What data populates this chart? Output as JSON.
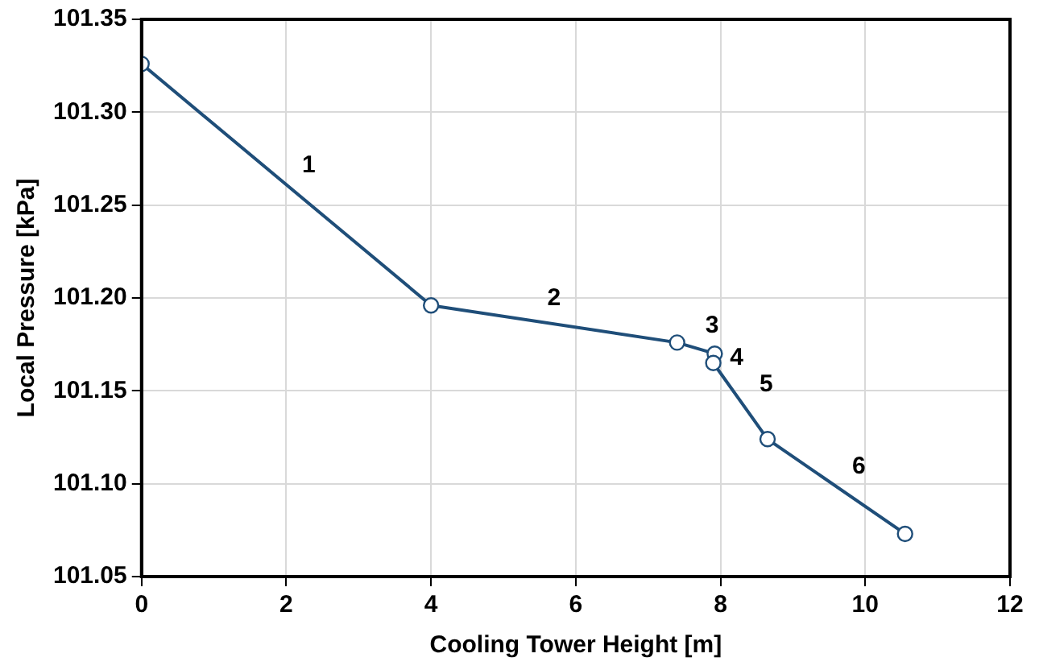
{
  "chart_data": {
    "type": "line",
    "xlabel": "Cooling Tower Height [m]",
    "ylabel": "Local Pressure [kPa]",
    "series": [
      {
        "color": "#1f4e79",
        "x": [
          0,
          4.0,
          7.4,
          7.92,
          7.9,
          8.65,
          10.55
        ],
        "values": [
          101.326,
          101.196,
          101.176,
          101.17,
          101.165,
          101.124,
          101.073
        ]
      }
    ],
    "xlim": [
      0,
      12
    ],
    "xticks": [
      0,
      2,
      4,
      6,
      8,
      10,
      12
    ],
    "ylim": [
      101.05,
      101.35
    ],
    "yticks": [
      {
        "value": 101.05,
        "label": "101.05"
      },
      {
        "value": 101.1,
        "label": "101.10"
      },
      {
        "value": 101.15,
        "label": "101.15"
      },
      {
        "value": 101.2,
        "label": "101.20"
      },
      {
        "value": 101.25,
        "label": "101.25"
      },
      {
        "value": 101.3,
        "label": "101.30"
      },
      {
        "value": 101.35,
        "label": "101.35"
      }
    ],
    "grid": true,
    "marker": "circle",
    "line_style": "solid",
    "legend": false,
    "annotations": [
      "1",
      "2",
      "3",
      "4",
      "5",
      "6"
    ]
  }
}
